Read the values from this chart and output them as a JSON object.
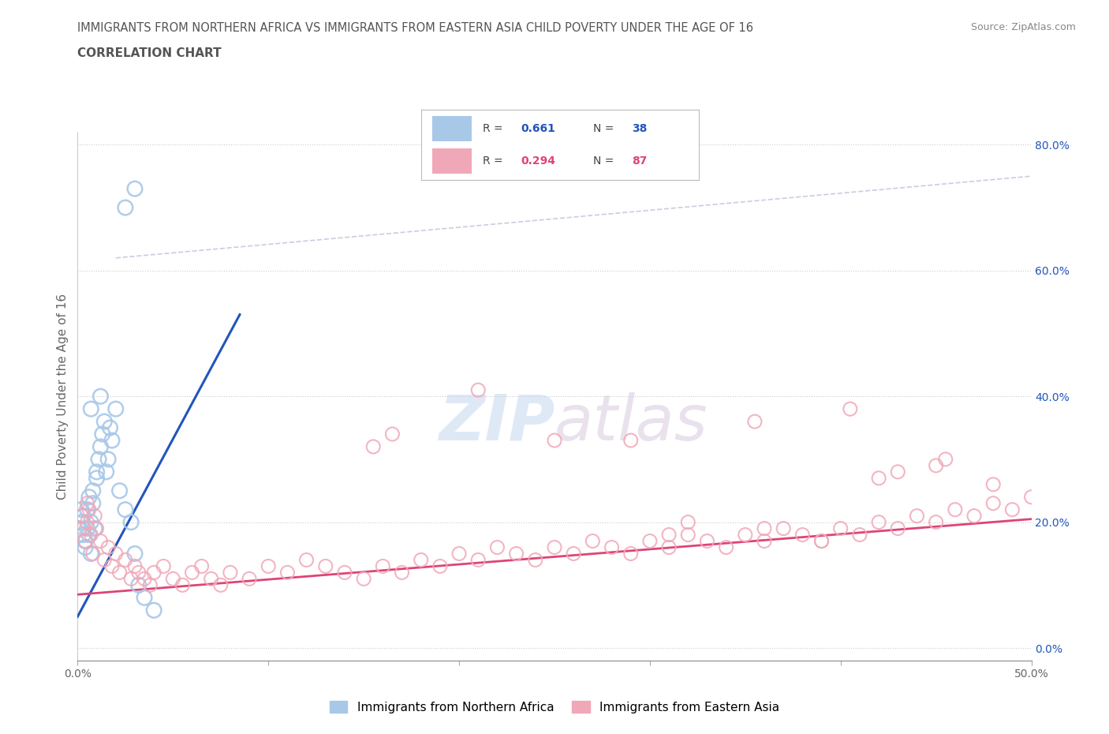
{
  "title_line1": "IMMIGRANTS FROM NORTHERN AFRICA VS IMMIGRANTS FROM EASTERN ASIA CHILD POVERTY UNDER THE AGE OF 16",
  "title_line2": "CORRELATION CHART",
  "source_text": "Source: ZipAtlas.com",
  "ylabel": "Child Poverty Under the Age of 16",
  "watermark_zip": "ZIP",
  "watermark_atlas": "atlas",
  "legend_r1": "0.661",
  "legend_n1": "38",
  "legend_r2": "0.294",
  "legend_n2": "87",
  "color_blue": "#a8c8e8",
  "color_pink": "#f0a8b8",
  "color_blue_line": "#2255bb",
  "color_pink_line": "#dd4477",
  "color_blue_text": "#2255bb",
  "color_pink_text": "#dd4477",
  "color_gray_text": "#666666",
  "xlim": [
    0.0,
    0.5
  ],
  "ylim": [
    -0.02,
    0.82
  ],
  "xtick_positions": [
    0.0,
    0.1,
    0.2,
    0.3,
    0.4,
    0.5
  ],
  "xtick_labels": [
    "0.0%",
    "",
    "",
    "",
    "",
    "50.0%"
  ],
  "yticks_right": [
    0.0,
    0.2,
    0.4,
    0.6,
    0.8
  ],
  "ytick_labels_right": [
    "0.0%",
    "20.0%",
    "40.0%",
    "60.0%",
    "80.0%"
  ],
  "blue_scatter_x": [
    0.001,
    0.002,
    0.002,
    0.003,
    0.003,
    0.004,
    0.004,
    0.005,
    0.005,
    0.006,
    0.006,
    0.007,
    0.007,
    0.008,
    0.008,
    0.009,
    0.01,
    0.01,
    0.011,
    0.012,
    0.013,
    0.014,
    0.015,
    0.016,
    0.017,
    0.018,
    0.02,
    0.022,
    0.025,
    0.028,
    0.03,
    0.032,
    0.035,
    0.04,
    0.025,
    0.03,
    0.007,
    0.012
  ],
  "blue_scatter_y": [
    0.19,
    0.2,
    0.22,
    0.18,
    0.21,
    0.17,
    0.16,
    0.19,
    0.22,
    0.18,
    0.24,
    0.2,
    0.15,
    0.23,
    0.25,
    0.19,
    0.27,
    0.28,
    0.3,
    0.32,
    0.34,
    0.36,
    0.28,
    0.3,
    0.35,
    0.33,
    0.38,
    0.25,
    0.22,
    0.2,
    0.15,
    0.1,
    0.08,
    0.06,
    0.7,
    0.73,
    0.38,
    0.4
  ],
  "pink_scatter_x": [
    0.002,
    0.003,
    0.004,
    0.005,
    0.006,
    0.007,
    0.008,
    0.009,
    0.01,
    0.012,
    0.014,
    0.016,
    0.018,
    0.02,
    0.022,
    0.025,
    0.028,
    0.03,
    0.032,
    0.035,
    0.038,
    0.04,
    0.045,
    0.05,
    0.055,
    0.06,
    0.065,
    0.07,
    0.075,
    0.08,
    0.09,
    0.1,
    0.11,
    0.12,
    0.13,
    0.14,
    0.15,
    0.16,
    0.17,
    0.18,
    0.19,
    0.2,
    0.21,
    0.22,
    0.23,
    0.24,
    0.25,
    0.26,
    0.27,
    0.28,
    0.29,
    0.3,
    0.31,
    0.32,
    0.33,
    0.34,
    0.35,
    0.36,
    0.37,
    0.38,
    0.39,
    0.4,
    0.41,
    0.42,
    0.43,
    0.44,
    0.45,
    0.46,
    0.47,
    0.48,
    0.49,
    0.5,
    0.155,
    0.165,
    0.21,
    0.31,
    0.32,
    0.36,
    0.39,
    0.43,
    0.455,
    0.355,
    0.405,
    0.25,
    0.29,
    0.42,
    0.45,
    0.48,
    0.005
  ],
  "pink_scatter_y": [
    0.21,
    0.19,
    0.17,
    0.2,
    0.22,
    0.18,
    0.15,
    0.21,
    0.19,
    0.17,
    0.14,
    0.16,
    0.13,
    0.15,
    0.12,
    0.14,
    0.11,
    0.13,
    0.12,
    0.11,
    0.1,
    0.12,
    0.13,
    0.11,
    0.1,
    0.12,
    0.13,
    0.11,
    0.1,
    0.12,
    0.11,
    0.13,
    0.12,
    0.14,
    0.13,
    0.12,
    0.11,
    0.13,
    0.12,
    0.14,
    0.13,
    0.15,
    0.14,
    0.16,
    0.15,
    0.14,
    0.16,
    0.15,
    0.17,
    0.16,
    0.15,
    0.17,
    0.16,
    0.18,
    0.17,
    0.16,
    0.18,
    0.17,
    0.19,
    0.18,
    0.17,
    0.19,
    0.18,
    0.2,
    0.19,
    0.21,
    0.2,
    0.22,
    0.21,
    0.23,
    0.22,
    0.24,
    0.32,
    0.34,
    0.41,
    0.18,
    0.2,
    0.19,
    0.17,
    0.28,
    0.3,
    0.36,
    0.38,
    0.33,
    0.33,
    0.27,
    0.29,
    0.26,
    0.23
  ],
  "blue_line_x": [
    0.0,
    0.085
  ],
  "blue_line_y": [
    0.05,
    0.53
  ],
  "pink_line_x": [
    0.0,
    0.5
  ],
  "pink_line_y": [
    0.085,
    0.205
  ],
  "dashed_line_x": [
    0.02,
    0.5
  ],
  "dashed_line_y": [
    0.62,
    0.75
  ]
}
